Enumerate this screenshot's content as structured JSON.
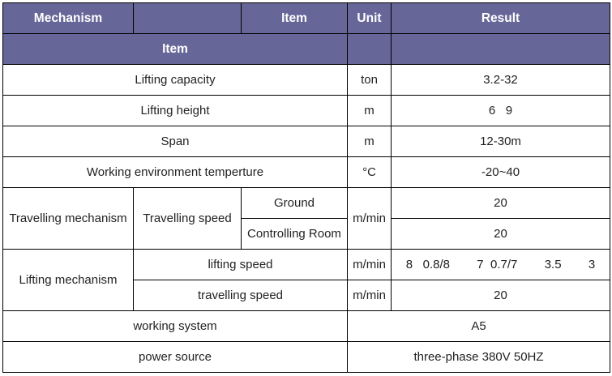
{
  "header": {
    "mechanism": "Mechanism",
    "item": "Item",
    "unit": "Unit",
    "result": "Result",
    "sub_item": "Item"
  },
  "colors": {
    "header_bg": "#666699",
    "header_text": "#ffffff"
  },
  "rows": {
    "lifting_capacity": {
      "item": "Lifting capacity",
      "unit": "ton",
      "result": "3.2-32"
    },
    "lifting_height": {
      "item": "Lifting height",
      "unit": "m",
      "result": "6   9"
    },
    "span": {
      "item": "Span",
      "unit": "m",
      "result": "12-30m"
    },
    "temperature": {
      "item": "Working environment temperture",
      "unit": "°C",
      "result": "-20~40"
    },
    "travelling": {
      "mechanism": "Travelling mechanism",
      "item": "Travelling speed",
      "sub1": "Ground",
      "sub2": "Controlling Room",
      "unit": "m/min",
      "result1": "20",
      "result2": "20"
    },
    "lifting": {
      "mechanism": "Lifting mechanism",
      "item1": "lifting speed",
      "unit1": "m/min",
      "result1": "8   0.8/8        7  0.7/7        3.5        3",
      "item2": "travelling speed",
      "unit2": "m/min",
      "result2": "20"
    },
    "working_system": {
      "item": "working system",
      "result": "A5"
    },
    "power_source": {
      "item": "power source",
      "result": "three-phase 380V 50HZ"
    }
  }
}
